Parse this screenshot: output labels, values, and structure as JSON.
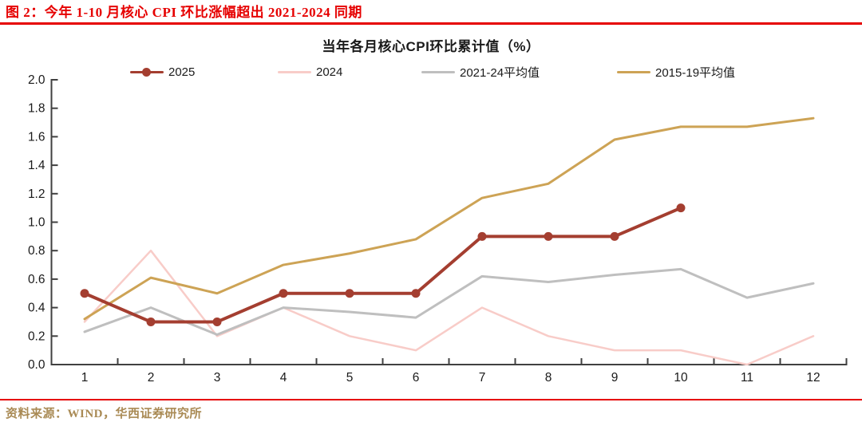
{
  "figure": {
    "caption": "图 2：今年 1-10 月核心 CPI 环比涨幅超出 2021-2024 同期",
    "source": "资料来源：WIND，华西证券研究所"
  },
  "colors": {
    "caption_red": "#E60000",
    "rule_red": "#E60000",
    "source_text": "#A98A54",
    "axis": "#404040",
    "tick_label": "#1a1a1a"
  },
  "axis": {
    "y_ticks": [
      "0.0",
      "0.2",
      "0.4",
      "0.6",
      "0.8",
      "1.0",
      "1.2",
      "1.4",
      "1.6",
      "1.8",
      "2.0"
    ],
    "x_ticks": [
      "1",
      "2",
      "3",
      "4",
      "5",
      "6",
      "7",
      "8",
      "9",
      "10",
      "11",
      "12"
    ]
  },
  "chart_data": {
    "type": "line",
    "title": "当年各月核心CPI环比累计值（%）",
    "xlabel": "",
    "ylabel": "",
    "x": [
      1,
      2,
      3,
      4,
      5,
      6,
      7,
      8,
      9,
      10,
      11,
      12
    ],
    "ylim": [
      0.0,
      2.0
    ],
    "ytick_step": 0.2,
    "grid": false,
    "legend_position": "top",
    "series": [
      {
        "name": "2024",
        "color": "#F8CCC8",
        "marker": "none",
        "line_width": 2.5,
        "values": [
          0.3,
          0.8,
          0.2,
          0.4,
          0.2,
          0.1,
          0.4,
          0.2,
          0.1,
          0.1,
          0.0,
          0.2
        ]
      },
      {
        "name": "2021-24平均值",
        "color": "#BFBFBF",
        "marker": "none",
        "line_width": 3,
        "values": [
          0.23,
          0.4,
          0.21,
          0.4,
          0.37,
          0.33,
          0.62,
          0.58,
          0.63,
          0.67,
          0.47,
          0.57
        ]
      },
      {
        "name": "2015-19平均值",
        "color": "#CDA355",
        "marker": "none",
        "line_width": 3,
        "values": [
          0.32,
          0.61,
          0.5,
          0.7,
          0.78,
          0.88,
          1.17,
          1.27,
          1.58,
          1.67,
          1.67,
          1.73
        ]
      },
      {
        "name": "2025",
        "color": "#A43E30",
        "marker": "circle",
        "line_width": 4,
        "values": [
          0.5,
          0.3,
          0.3,
          0.5,
          0.5,
          0.5,
          0.9,
          0.9,
          0.9,
          1.1
        ]
      }
    ],
    "legend_order": [
      "2025",
      "2024",
      "2021-24平均值",
      "2015-19平均值"
    ]
  }
}
